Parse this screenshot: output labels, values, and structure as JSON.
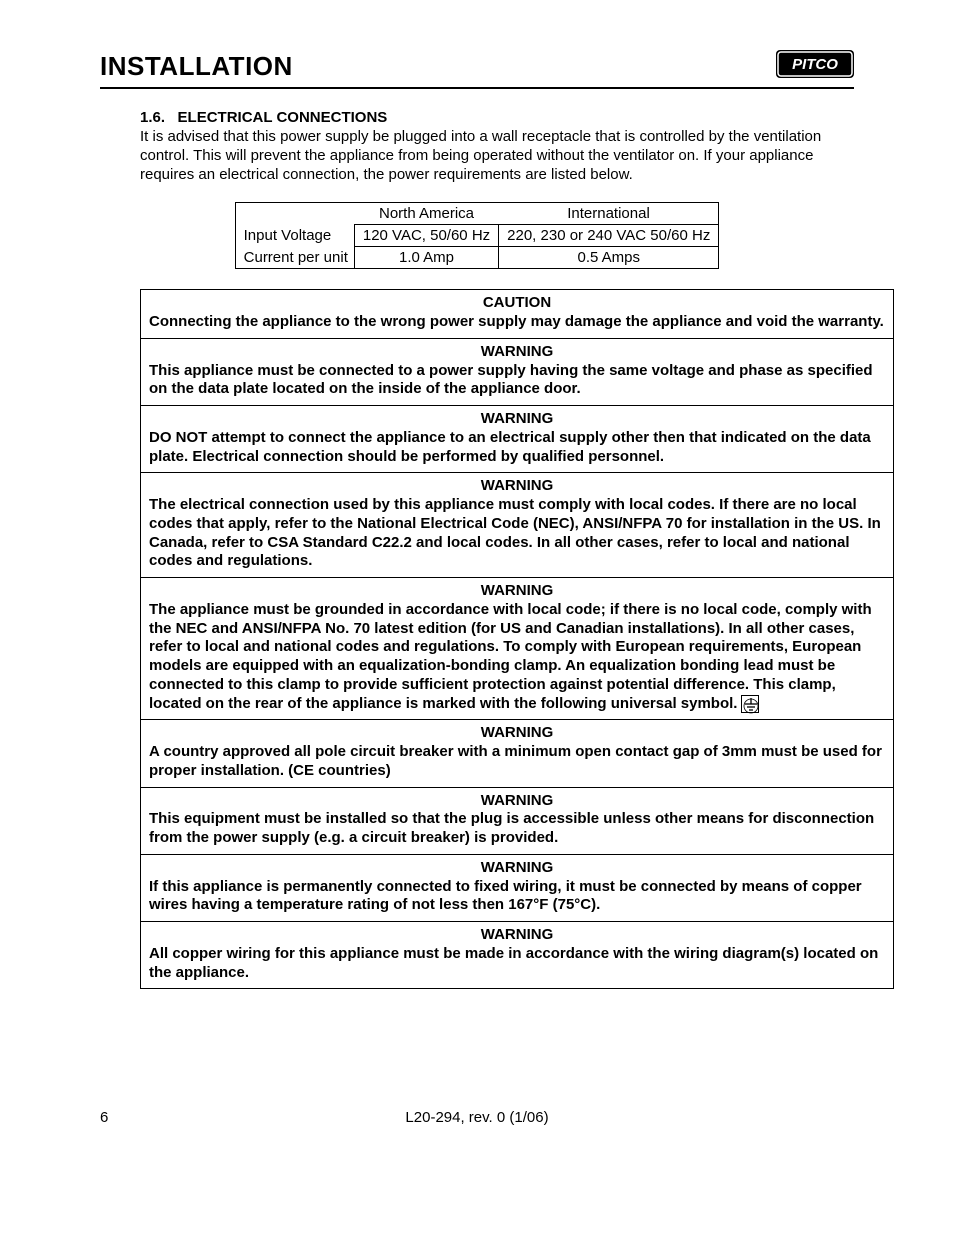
{
  "header": {
    "title": "INSTALLATION",
    "logo_text": "PITCO"
  },
  "section": {
    "number": "1.6.",
    "title": "ELECTRICAL CONNECTIONS",
    "body": "It is advised that this power supply be plugged into a wall receptacle that is controlled by the ventilation control. This will prevent the appliance from being operated without the ventilator on. If your appliance requires an electrical connection, the power requirements are listed below."
  },
  "elec_table": {
    "col_na": "North America",
    "col_intl": "International",
    "row1_label": "Input Voltage",
    "row1_na": "120 VAC, 50/60 Hz",
    "row1_intl": "220, 230 or 240 VAC 50/60 Hz",
    "row2_label": "Current per unit",
    "row2_na": "1.0 Amp",
    "row2_intl": "0.5 Amps"
  },
  "notices": [
    {
      "title": "CAUTION",
      "body": "Connecting the appliance to the wrong power supply may damage the appliance and void the warranty."
    },
    {
      "title": "WARNING",
      "body": "This appliance must be connected to a power supply having the same voltage and phase as specified on the data plate located on the inside of the appliance door."
    },
    {
      "title": "WARNING",
      "body": "DO NOT attempt to connect the appliance to an electrical supply other then that indicated on the data plate.  Electrical connection should be performed by qualified personnel."
    },
    {
      "title": "WARNING",
      "body": "The electrical connection used by this appliance must comply with local codes. If there are no local codes that apply, refer to the National Electrical Code (NEC), ANSI/NFPA 70 for installation in the US.  In Canada, refer to CSA Standard C22.2 and local codes.  In all other cases, refer to local and national codes and regulations."
    },
    {
      "title": "WARNING",
      "body": "The appliance must be grounded in accordance with local code; if there is no local code, comply with the NEC and ANSI/NFPA No. 70 latest edition (for US and Canadian installations).  In all other cases, refer to local and national codes and regulations.  To comply with European requirements, European models are equipped with an equalization-bonding clamp.  An equalization bonding lead must be connected to this clamp to provide sufficient protection against potential difference.  This clamp, located on the rear of the appliance is marked with the following universal symbol.",
      "has_symbol": true
    },
    {
      "title": "WARNING",
      "body": "A country approved all pole circuit breaker with a minimum open contact gap of 3mm must be used for proper installation.  (CE countries)"
    },
    {
      "title": "WARNING",
      "body": "This equipment must be installed so that the plug is accessible unless other means for disconnection from the power supply (e.g. a circuit breaker) is provided."
    },
    {
      "title": "WARNING",
      "body": "If this appliance is permanently connected to fixed wiring, it must be connected by means of copper wires having a temperature rating of not less then 167°F (75°C)."
    },
    {
      "title": "WARNING",
      "body": "All copper wiring for this appliance must be made in accordance with the wiring diagram(s) located on the appliance."
    }
  ],
  "footer": {
    "page": "6",
    "doc": "L20-294, rev. 0 (1/06)"
  },
  "colors": {
    "text": "#000000",
    "background": "#ffffff",
    "border": "#000000",
    "logo_bg": "#000000",
    "logo_fg": "#ffffff"
  }
}
